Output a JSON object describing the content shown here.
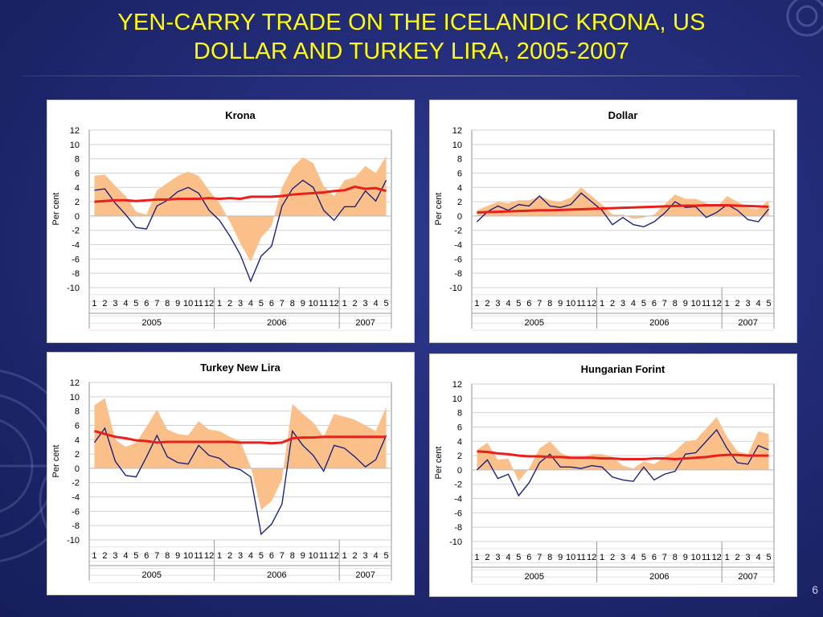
{
  "slide": {
    "title_line1": "YEN-CARRY TRADE ON THE ICELANDIC KRONA, US",
    "title_line2": "DOLLAR AND TURKEY LIRA, 2005-2007",
    "page_number": "6",
    "colors": {
      "title": "#ffff00",
      "band": "#fbc08a",
      "red_line": "#e8201c",
      "blue_line": "#1a237e"
    }
  },
  "chart_data": [
    {
      "type": "area",
      "title": "Krona",
      "ylabel": "Per cent",
      "ylim": [
        -10,
        12
      ],
      "yticks": [
        12,
        10,
        8,
        6,
        4,
        2,
        0,
        -2,
        -4,
        -6,
        -8,
        -10
      ],
      "month_labels": [
        "1",
        "2",
        "3",
        "4",
        "5",
        "6",
        "7",
        "8",
        "9",
        "10",
        "11",
        "12",
        "1",
        "2",
        "3",
        "4",
        "5",
        "6",
        "7",
        "8",
        "9",
        "10",
        "11",
        "12",
        "1",
        "2",
        "3",
        "4",
        "5"
      ],
      "years": [
        {
          "label": "2005",
          "months": 12
        },
        {
          "label": "2006",
          "months": 12
        },
        {
          "label": "2007",
          "months": 5
        }
      ],
      "series": [
        {
          "role": "band",
          "values": [
            5.6,
            5.8,
            4.2,
            2.8,
            0.6,
            0.2,
            3.6,
            4.6,
            5.6,
            6.2,
            5.6,
            3.6,
            1.8,
            -0.8,
            -3.8,
            -6.4,
            -3.0,
            -1.4,
            4.0,
            6.8,
            8.2,
            7.4,
            4.2,
            2.8,
            5.0,
            5.4,
            7.0,
            6.0,
            8.4
          ]
        },
        {
          "role": "trend",
          "values": [
            2.0,
            2.1,
            2.2,
            2.2,
            2.1,
            2.2,
            2.3,
            2.3,
            2.4,
            2.4,
            2.4,
            2.5,
            2.4,
            2.5,
            2.4,
            2.7,
            2.7,
            2.7,
            2.8,
            3.0,
            3.1,
            3.2,
            3.3,
            3.5,
            3.6,
            4.1,
            3.8,
            3.9,
            3.5
          ]
        },
        {
          "role": "spread",
          "values": [
            3.6,
            3.8,
            1.8,
            0.2,
            -1.6,
            -1.8,
            1.4,
            2.2,
            3.4,
            4.0,
            3.2,
            0.8,
            -0.6,
            -2.8,
            -5.4,
            -9.1,
            -5.6,
            -4.2,
            1.4,
            3.8,
            5.0,
            4.0,
            0.8,
            -0.6,
            1.3,
            1.3,
            3.5,
            2.1,
            5.0
          ]
        }
      ]
    },
    {
      "type": "area",
      "title": "Dollar",
      "ylabel": "Per cent",
      "ylim": [
        -10,
        12
      ],
      "yticks": [
        12,
        10,
        8,
        6,
        4,
        2,
        0,
        -2,
        -4,
        -6,
        -8,
        -10
      ],
      "month_labels": [
        "1",
        "2",
        "3",
        "4",
        "5",
        "6",
        "7",
        "8",
        "9",
        "10",
        "11",
        "12",
        "1",
        "2",
        "3",
        "4",
        "5",
        "6",
        "7",
        "8",
        "9",
        "10",
        "11",
        "12",
        "1",
        "2",
        "3",
        "4",
        "5"
      ],
      "years": [
        {
          "label": "2005",
          "months": 12
        },
        {
          "label": "2006",
          "months": 12
        },
        {
          "label": "2007",
          "months": 5
        }
      ],
      "series": [
        {
          "role": "band",
          "values": [
            0.8,
            1.4,
            2.0,
            1.8,
            2.2,
            2.2,
            2.8,
            2.2,
            2.0,
            2.6,
            4.0,
            2.8,
            1.6,
            0.2,
            0.2,
            -0.4,
            -0.2,
            0.2,
            1.6,
            3.0,
            2.4,
            2.4,
            1.8,
            1.2,
            2.8,
            2.0,
            1.2,
            1.0,
            2.2
          ]
        },
        {
          "role": "trend",
          "values": [
            0.5,
            0.55,
            0.6,
            0.65,
            0.7,
            0.75,
            0.8,
            0.8,
            0.85,
            0.9,
            0.95,
            1.0,
            1.05,
            1.1,
            1.15,
            1.2,
            1.25,
            1.3,
            1.35,
            1.4,
            1.45,
            1.45,
            1.5,
            1.5,
            1.5,
            1.45,
            1.4,
            1.35,
            1.3
          ]
        },
        {
          "role": "spread",
          "values": [
            -0.8,
            0.6,
            1.4,
            0.8,
            1.6,
            1.4,
            2.8,
            1.4,
            1.2,
            1.6,
            3.2,
            2.0,
            0.8,
            -1.2,
            -0.2,
            -1.2,
            -1.5,
            -0.8,
            0.4,
            2.0,
            1.2,
            1.3,
            -0.2,
            0.5,
            1.6,
            0.8,
            -0.5,
            -0.8,
            1.0
          ]
        }
      ]
    },
    {
      "type": "area",
      "title": "Turkey New Lira",
      "ylabel": "Per cent",
      "ylim": [
        -10,
        12
      ],
      "yticks": [
        12,
        10,
        8,
        6,
        4,
        2,
        0,
        -2,
        -4,
        -6,
        -8,
        -10
      ],
      "month_labels": [
        "1",
        "2",
        "3",
        "4",
        "5",
        "6",
        "7",
        "8",
        "9",
        "10",
        "11",
        "12",
        "1",
        "2",
        "3",
        "4",
        "5",
        "6",
        "7",
        "8",
        "9",
        "10",
        "11",
        "12",
        "1",
        "2",
        "3",
        "4",
        "5"
      ],
      "years": [
        {
          "label": "2005",
          "months": 12
        },
        {
          "label": "2006",
          "months": 12
        },
        {
          "label": "2007",
          "months": 5
        }
      ],
      "series": [
        {
          "role": "band",
          "values": [
            8.8,
            9.8,
            4.0,
            3.0,
            3.6,
            5.8,
            8.2,
            5.4,
            4.8,
            4.6,
            6.6,
            5.4,
            5.2,
            4.4,
            3.8,
            0.2,
            -5.8,
            -4.6,
            -1.6,
            9.0,
            7.6,
            6.4,
            4.4,
            7.6,
            7.2,
            6.8,
            6.0,
            5.2,
            8.6
          ]
        },
        {
          "role": "trend",
          "values": [
            5.2,
            4.8,
            4.4,
            4.2,
            3.9,
            3.8,
            3.6,
            3.7,
            3.7,
            3.7,
            3.7,
            3.7,
            3.7,
            3.7,
            3.6,
            3.6,
            3.6,
            3.5,
            3.6,
            4.2,
            4.3,
            4.3,
            4.4,
            4.4,
            4.4,
            4.4,
            4.4,
            4.4,
            4.4
          ]
        },
        {
          "role": "spread",
          "values": [
            3.6,
            5.6,
            1.0,
            -1.0,
            -1.2,
            1.6,
            4.6,
            1.6,
            0.8,
            0.6,
            3.2,
            1.8,
            1.4,
            0.2,
            -0.2,
            -1.2,
            -9.2,
            -7.8,
            -5.0,
            5.2,
            3.2,
            1.8,
            -0.4,
            3.2,
            2.8,
            1.6,
            0.2,
            1.2,
            4.6
          ]
        }
      ]
    },
    {
      "type": "area",
      "title": "Hungarian Forint",
      "ylabel": "Per cent",
      "ylim": [
        -10,
        12
      ],
      "yticks": [
        12,
        10,
        8,
        6,
        4,
        2,
        0,
        -2,
        -4,
        -6,
        -8,
        -10
      ],
      "month_labels": [
        "1",
        "2",
        "3",
        "4",
        "5",
        "6",
        "7",
        "8",
        "9",
        "10",
        "11",
        "12",
        "1",
        "2",
        "3",
        "4",
        "5",
        "6",
        "7",
        "8",
        "9",
        "10",
        "11",
        "12",
        "1",
        "2",
        "3",
        "4",
        "5"
      ],
      "years": [
        {
          "label": "2005",
          "months": 12
        },
        {
          "label": "2006",
          "months": 12
        },
        {
          "label": "2007",
          "months": 5
        }
      ],
      "series": [
        {
          "role": "band",
          "values": [
            2.8,
            3.8,
            1.4,
            1.6,
            -1.6,
            0.2,
            3.0,
            4.0,
            2.4,
            1.8,
            1.6,
            2.2,
            2.2,
            1.8,
            0.6,
            0.2,
            1.2,
            0.8,
            1.8,
            2.6,
            4.0,
            4.2,
            5.8,
            7.4,
            4.6,
            2.6,
            2.2,
            5.4,
            5.0
          ]
        },
        {
          "role": "trend",
          "values": [
            2.6,
            2.5,
            2.3,
            2.2,
            2.0,
            1.9,
            1.9,
            1.8,
            1.8,
            1.7,
            1.7,
            1.7,
            1.6,
            1.6,
            1.5,
            1.5,
            1.5,
            1.6,
            1.6,
            1.5,
            1.6,
            1.7,
            1.8,
            2.0,
            2.1,
            2.1,
            2.0,
            2.0,
            2.0
          ]
        },
        {
          "role": "spread",
          "values": [
            0.0,
            1.4,
            -1.2,
            -0.6,
            -3.6,
            -1.8,
            1.0,
            2.2,
            0.4,
            0.4,
            0.2,
            0.6,
            0.4,
            -1.0,
            -1.4,
            -1.6,
            0.4,
            -1.4,
            -0.6,
            -0.2,
            2.2,
            2.4,
            4.0,
            5.6,
            3.0,
            1.0,
            0.8,
            3.4,
            2.8
          ]
        }
      ]
    }
  ]
}
